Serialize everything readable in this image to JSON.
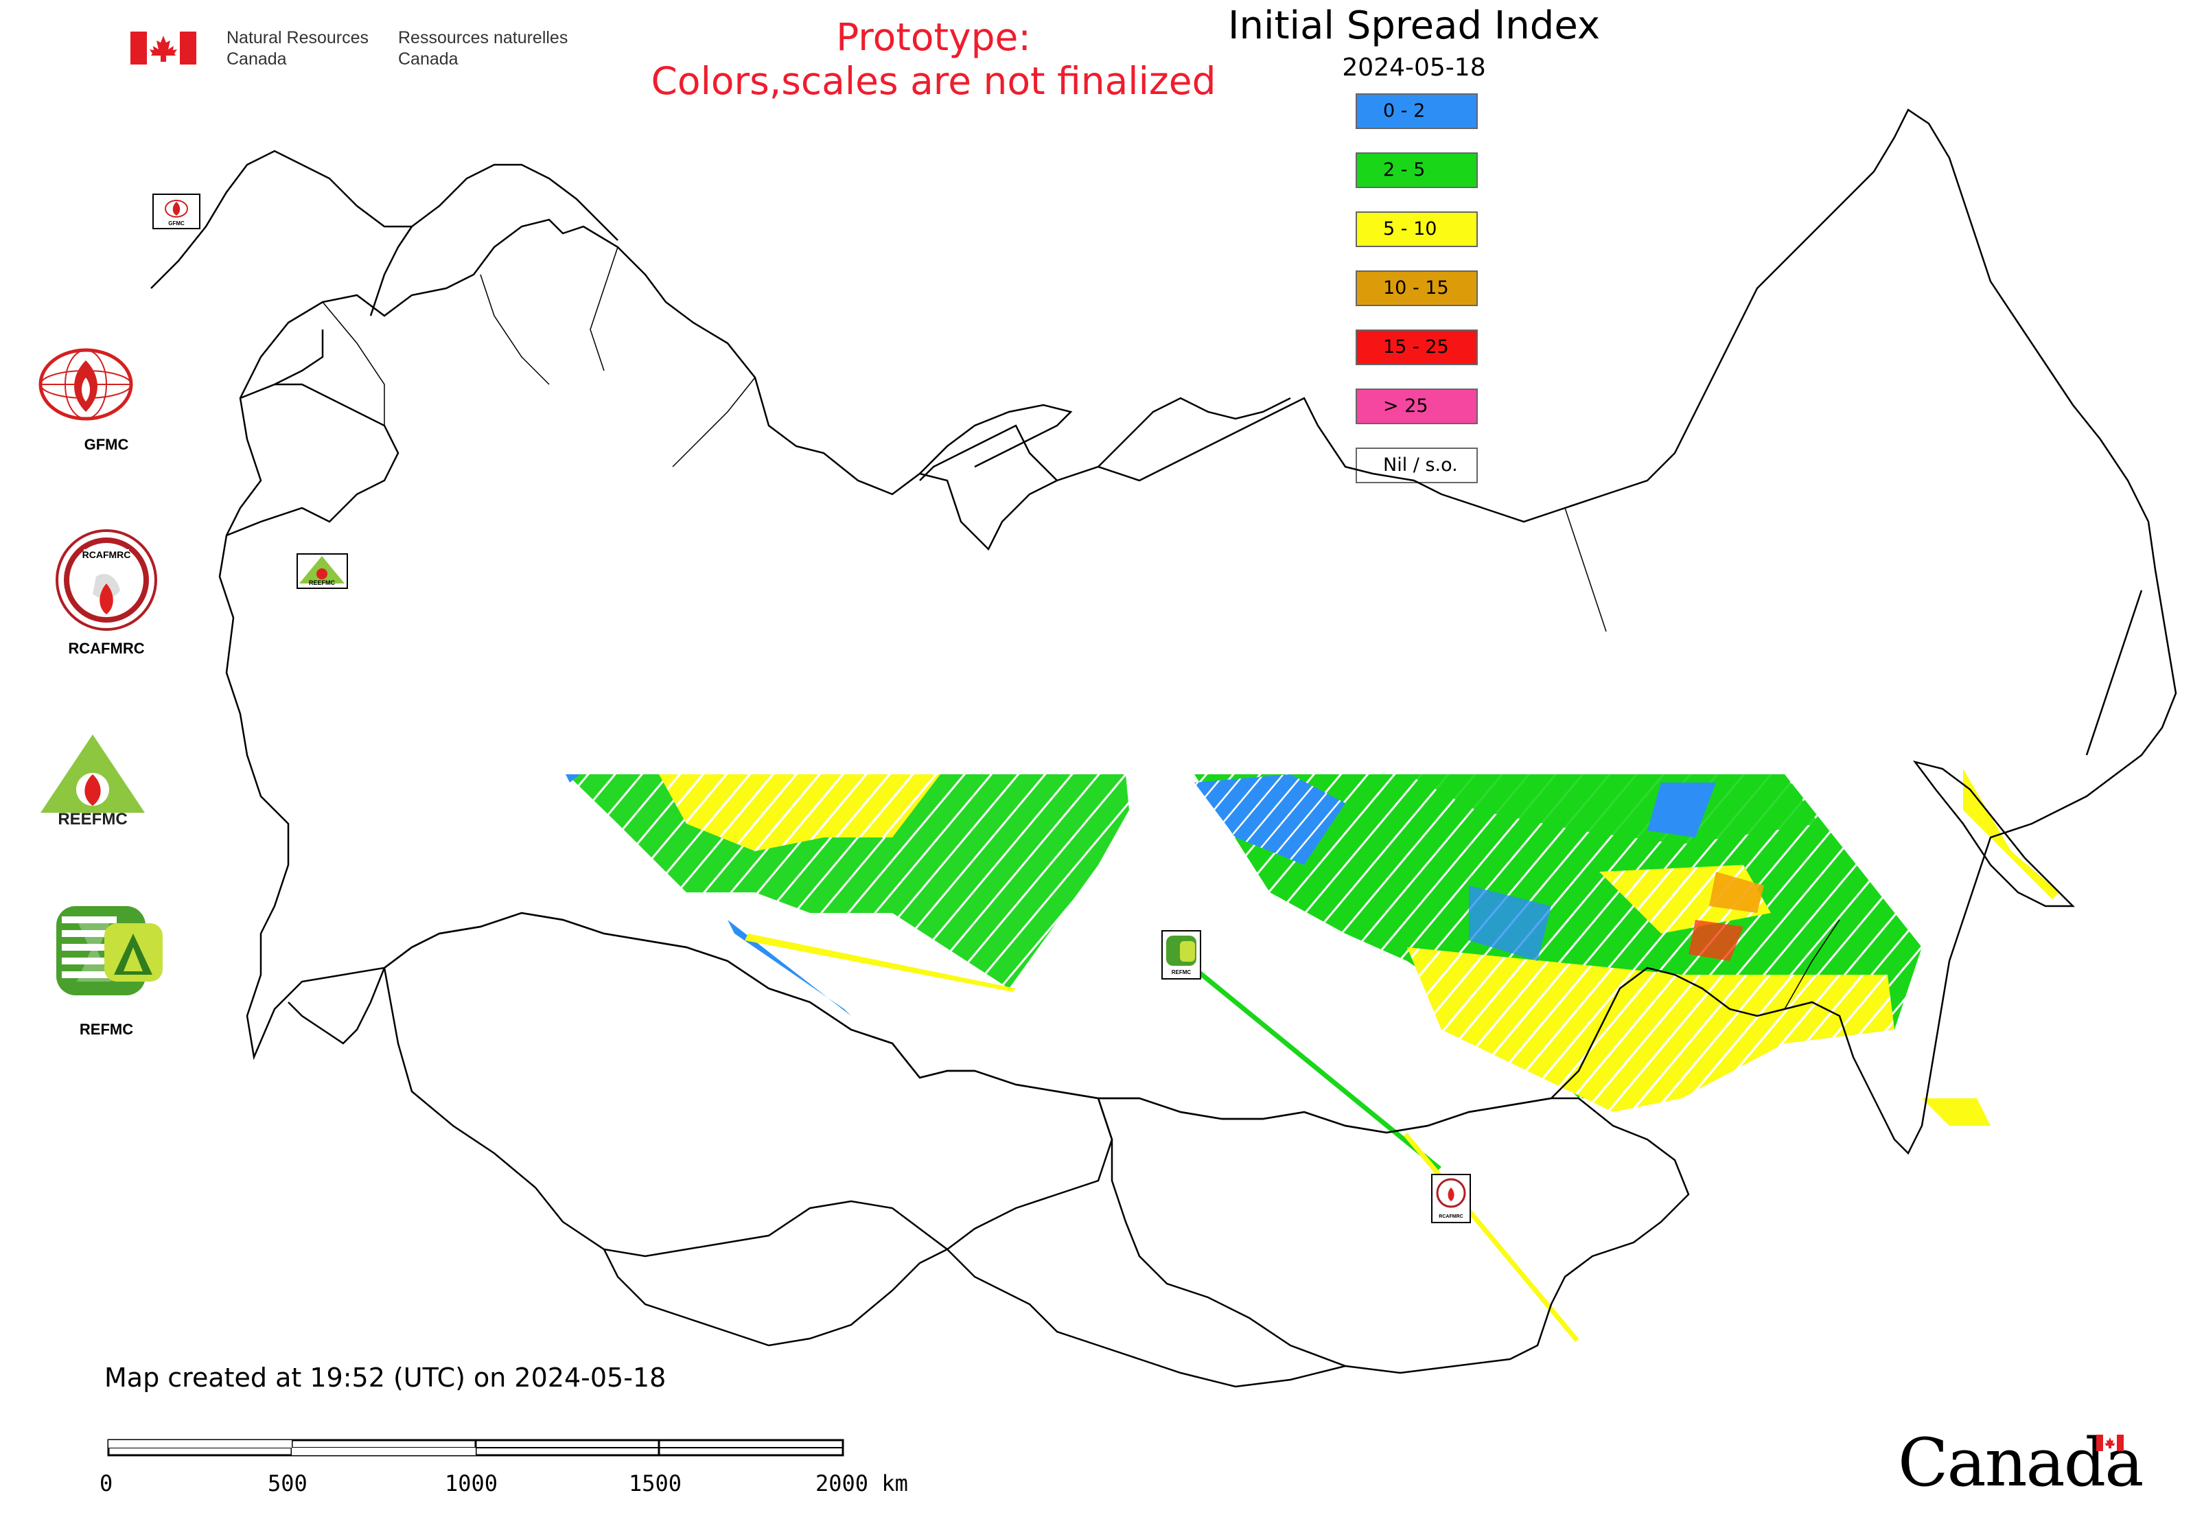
{
  "header": {
    "gov_en": "Natural Resources\nCanada",
    "gov_fr": "Ressources naturelles\nCanada"
  },
  "prototype_notice": {
    "line1": "Prototype:",
    "line2": "Colors,scales are not finalized",
    "color": "#ee1d2e"
  },
  "title": "Initial Spread Index",
  "date": "2024-05-18",
  "legend": [
    {
      "label": "0 - 2",
      "color": "#2d8ff5"
    },
    {
      "label": "2 - 5",
      "color": "#19d619"
    },
    {
      "label": "5 - 10",
      "color": "#fbfb14"
    },
    {
      "label": "10 - 15",
      "color": "#dc9c0a"
    },
    {
      "label": "15 - 25",
      "color": "#f71414"
    },
    {
      "label": "> 25",
      "color": "#f5479f"
    },
    {
      "label": "Nil / s.o.",
      "color": "#ffffff"
    }
  ],
  "logos": [
    {
      "label": "GFMC",
      "icon": "gfmc-logo"
    },
    {
      "label": "RCAFMRC",
      "icon": "rcafmrc-logo"
    },
    {
      "label": "",
      "icon": "reefmc-logo",
      "inner_text": "REEFMC"
    },
    {
      "label": "REFMC",
      "icon": "refmc-logo"
    }
  ],
  "map_markers": [
    {
      "icon": "gfmc-marker",
      "text": "GFMC"
    },
    {
      "icon": "reefmc-marker",
      "text": "REEFMC"
    },
    {
      "icon": "refmc-marker",
      "text": "REFMC"
    },
    {
      "icon": "rcafmrc-marker",
      "text": "RCAFMRC"
    }
  ],
  "footer": {
    "created": "Map created at 19:52 (UTC) on 2024-05-18",
    "scale_labels": [
      "0",
      "500",
      "1000",
      "1500",
      "2000 km"
    ],
    "wordmark": "Canada"
  }
}
